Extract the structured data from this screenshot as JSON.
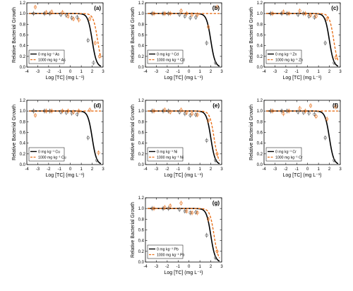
{
  "colors": {
    "control": "#000000",
    "treated": "#E8711C"
  },
  "chart_data": [
    {
      "type": "scatter",
      "panel": "(a)",
      "xlabel": "Log [TC] (mg L⁻¹)",
      "ylabel": "Relative Bacterial Growth",
      "xlim": [
        -4,
        3
      ],
      "ylim": [
        0,
        1.2
      ],
      "xticks": [
        "-4",
        "-3",
        "-2",
        "-1",
        "0",
        "1",
        "2",
        "3"
      ],
      "yticks": [
        "0.0",
        "0.2",
        "0.4",
        "0.6",
        "0.8",
        "1.0",
        "1.2"
      ],
      "series": [
        {
          "name": "0 mg kg⁻¹ As",
          "ec50_log": 2.0,
          "points": [
            [
              -3.3,
              1.0
            ],
            [
              -2.3,
              1.0
            ],
            [
              -1.8,
              1.0
            ],
            [
              -0.8,
              0.98
            ],
            [
              -0.3,
              0.97
            ],
            [
              0.2,
              0.92
            ],
            [
              0.7,
              0.93
            ],
            [
              1.7,
              0.5
            ],
            [
              2.2,
              0.08
            ]
          ]
        },
        {
          "name": "1000 mg kg⁻¹ As",
          "ec50_log": 2.5,
          "points": [
            [
              -3.3,
              1.12
            ],
            [
              -2.3,
              1.02
            ],
            [
              -1.8,
              1.03
            ],
            [
              -0.8,
              1.02
            ],
            [
              -0.3,
              0.95
            ],
            [
              0.2,
              0.9
            ],
            [
              0.7,
              0.88
            ],
            [
              1.7,
              0.9
            ],
            [
              2.2,
              0.45
            ],
            [
              2.6,
              0.2
            ]
          ]
        }
      ]
    },
    {
      "type": "scatter",
      "panel": "(b)",
      "xlabel": "Log [TC] (mg L⁻¹)",
      "ylabel": "Relative Bacterial Growth",
      "xlim": [
        -4,
        3
      ],
      "ylim": [
        0,
        1.2
      ],
      "xticks": [
        "-4",
        "-3",
        "-2",
        "-1",
        "0",
        "1",
        "2",
        "3"
      ],
      "yticks": [
        "0.0",
        "0.2",
        "0.4",
        "0.6",
        "0.8",
        "1.0",
        "1.2"
      ],
      "series": [
        {
          "name": "0 mg kg⁻¹ Cd",
          "ec50_log": 2.0,
          "points": [
            [
              -3.3,
              1.0
            ],
            [
              -2.3,
              1.0
            ],
            [
              -1.8,
              1.0
            ],
            [
              -0.8,
              0.98
            ],
            [
              -0.3,
              0.95
            ],
            [
              0.2,
              0.92
            ],
            [
              0.7,
              0.93
            ],
            [
              1.7,
              0.45
            ],
            [
              2.5,
              0.08
            ]
          ]
        },
        {
          "name": "1000 mg kg⁻¹ Cd",
          "ec50_log": 10,
          "points": [
            [
              -3.3,
              1.0
            ],
            [
              -2.3,
              1.0
            ],
            [
              -1.8,
              1.0
            ],
            [
              -0.8,
              1.05
            ],
            [
              -0.3,
              1.0
            ],
            [
              0.2,
              0.98
            ],
            [
              0.7,
              0.98
            ],
            [
              1.7,
              0.75
            ],
            [
              2.5,
              1.12
            ]
          ]
        }
      ]
    },
    {
      "type": "scatter",
      "panel": "(c)",
      "xlabel": "Log [TC] (mg L⁻¹)",
      "ylabel": "Relative Bacterial Growth",
      "xlim": [
        -4,
        3
      ],
      "ylim": [
        0,
        1.2
      ],
      "xticks": [
        "-4",
        "-3",
        "-2",
        "-1",
        "0",
        "1",
        "2",
        "3"
      ],
      "yticks": [
        "0.0",
        "0.2",
        "0.4",
        "0.6",
        "0.8",
        "1.0",
        "1.2"
      ],
      "series": [
        {
          "name": "0 mg kg⁻¹ Zn",
          "ec50_log": 2.0,
          "points": [
            [
              -3.3,
              1.0
            ],
            [
              -2.3,
              1.0
            ],
            [
              -1.8,
              1.0
            ],
            [
              -0.8,
              0.98
            ],
            [
              -0.3,
              1.0
            ],
            [
              0.2,
              0.95
            ],
            [
              0.7,
              0.93
            ],
            [
              1.7,
              0.45
            ],
            [
              2.5,
              0.08
            ]
          ]
        },
        {
          "name": "1000 mg kg⁻¹ Zn",
          "ec50_log": 2.4,
          "points": [
            [
              -3.3,
              1.0
            ],
            [
              -2.3,
              1.03
            ],
            [
              -1.8,
              1.0
            ],
            [
              -0.8,
              1.05
            ],
            [
              -0.3,
              1.0
            ],
            [
              0.2,
              0.97
            ],
            [
              0.7,
              0.95
            ],
            [
              1.7,
              0.9
            ],
            [
              2.5,
              0.18
            ]
          ]
        }
      ]
    },
    {
      "type": "scatter",
      "panel": "(d)",
      "xlabel": "Log [TC] (mg L⁻¹)",
      "ylabel": "Relative Bacterial Growth",
      "xlim": [
        -4,
        3
      ],
      "ylim": [
        0,
        1.2
      ],
      "xticks": [
        "-4",
        "-3",
        "-2",
        "-1",
        "0",
        "1",
        "2",
        "3"
      ],
      "yticks": [
        "0.0",
        "0.2",
        "0.4",
        "0.6",
        "0.8",
        "1.0",
        "1.2"
      ],
      "series": [
        {
          "name": "0 mg kg⁻¹ Cu",
          "ec50_log": 2.0,
          "points": [
            [
              -3.3,
              1.0
            ],
            [
              -2.3,
              1.0
            ],
            [
              -1.8,
              1.0
            ],
            [
              -0.8,
              0.98
            ],
            [
              -0.3,
              0.97
            ],
            [
              0.2,
              0.96
            ],
            [
              0.7,
              0.94
            ],
            [
              1.7,
              0.5
            ],
            [
              2.5,
              0.08
            ]
          ]
        },
        {
          "name": "1000 mg kg⁻¹ Cu",
          "ec50_log": 10,
          "points": [
            [
              -3.3,
              0.92
            ],
            [
              -2.3,
              1.0
            ],
            [
              -1.8,
              1.0
            ],
            [
              -0.8,
              1.0
            ],
            [
              -0.3,
              1.0
            ],
            [
              0.2,
              0.98
            ],
            [
              0.7,
              1.0
            ],
            [
              1.7,
              1.02
            ],
            [
              2.5,
              0.22
            ]
          ]
        }
      ]
    },
    {
      "type": "scatter",
      "panel": "(e)",
      "xlabel": "Log [TC] (mg L⁻¹)",
      "ylabel": "Relative Bacterial Growth",
      "xlim": [
        -4,
        3
      ],
      "ylim": [
        0,
        1.2
      ],
      "xticks": [
        "-4",
        "-3",
        "-2",
        "-1",
        "0",
        "1",
        "2",
        "3"
      ],
      "yticks": [
        "0.0",
        "0.2",
        "0.4",
        "0.6",
        "0.8",
        "1.0",
        "1.2"
      ],
      "series": [
        {
          "name": "0 mg kg⁻¹ Ni",
          "ec50_log": 2.0,
          "points": [
            [
              -3.3,
              1.0
            ],
            [
              -2.3,
              1.0
            ],
            [
              -1.8,
              1.0
            ],
            [
              -0.8,
              0.98
            ],
            [
              -0.3,
              0.95
            ],
            [
              0.2,
              0.92
            ],
            [
              0.7,
              0.93
            ],
            [
              1.7,
              0.45
            ],
            [
              2.5,
              0.08
            ]
          ]
        },
        {
          "name": "1000 mg kg⁻¹ Ni",
          "ec50_log": 2.3,
          "points": [
            [
              -3.3,
              1.0
            ],
            [
              -2.3,
              1.02
            ],
            [
              -1.8,
              0.98
            ],
            [
              -0.8,
              1.02
            ],
            [
              -0.3,
              0.97
            ],
            [
              0.2,
              0.95
            ],
            [
              0.7,
              0.93
            ],
            [
              1.7,
              0.82
            ],
            [
              2.5,
              0.2
            ]
          ]
        }
      ]
    },
    {
      "type": "scatter",
      "panel": "(f)",
      "xlabel": "Log [TC] (mg L⁻¹)",
      "ylabel": "Relative Bacterial Growth",
      "xlim": [
        -4,
        3
      ],
      "ylim": [
        0,
        1.2
      ],
      "xticks": [
        "-4",
        "-3",
        "-2",
        "-1",
        "0",
        "1",
        "2",
        "3"
      ],
      "yticks": [
        "0.0",
        "0.2",
        "0.4",
        "0.6",
        "0.8",
        "1.0",
        "1.2"
      ],
      "series": [
        {
          "name": "0 mg kg⁻¹ Cr",
          "ec50_log": 2.0,
          "points": [
            [
              -3.3,
              1.0
            ],
            [
              -2.3,
              1.0
            ],
            [
              -1.8,
              1.0
            ],
            [
              -0.8,
              0.98
            ],
            [
              -0.3,
              0.97
            ],
            [
              0.2,
              0.96
            ],
            [
              0.7,
              0.94
            ],
            [
              1.7,
              0.5
            ],
            [
              2.5,
              0.08
            ]
          ]
        },
        {
          "name": "1000 mg kg⁻¹ Cr",
          "ec50_log": 10,
          "points": [
            [
              -3.3,
              1.0
            ],
            [
              -2.3,
              0.95
            ],
            [
              -1.8,
              1.0
            ],
            [
              -0.8,
              1.05
            ],
            [
              -0.3,
              1.0
            ],
            [
              0.2,
              1.1
            ],
            [
              0.7,
              0.9
            ],
            [
              1.7,
              0.85
            ],
            [
              2.5,
              1.08
            ]
          ]
        }
      ]
    },
    {
      "type": "scatter",
      "panel": "(g)",
      "xlabel": "Log [TC] (mg L⁻¹)",
      "ylabel": "Relative Bacterial Growth",
      "xlim": [
        -4,
        3
      ],
      "ylim": [
        0,
        1.2
      ],
      "xticks": [
        "-4",
        "-3",
        "-2",
        "-1",
        "0",
        "1",
        "2",
        "3"
      ],
      "yticks": [
        "0.0",
        "0.2",
        "0.4",
        "0.6",
        "0.8",
        "1.0",
        "1.2"
      ],
      "series": [
        {
          "name": "0 mg kg⁻¹ Pb",
          "ec50_log": 2.0,
          "points": [
            [
              -3.3,
              1.0
            ],
            [
              -2.3,
              1.0
            ],
            [
              -1.8,
              1.0
            ],
            [
              -0.8,
              0.98
            ],
            [
              -0.3,
              0.95
            ],
            [
              0.2,
              0.92
            ],
            [
              0.7,
              0.93
            ],
            [
              1.7,
              0.5
            ],
            [
              2.5,
              0.08
            ]
          ]
        },
        {
          "name": "1000 mg kg⁻¹ Pb",
          "ec50_log": 2.3,
          "points": [
            [
              -3.3,
              1.0
            ],
            [
              -2.3,
              1.02
            ],
            [
              -1.8,
              1.05
            ],
            [
              -0.8,
              1.1
            ],
            [
              -0.3,
              0.95
            ],
            [
              0.2,
              0.92
            ],
            [
              0.7,
              0.92
            ],
            [
              1.7,
              0.8
            ],
            [
              2.5,
              0.2
            ]
          ]
        }
      ]
    }
  ]
}
